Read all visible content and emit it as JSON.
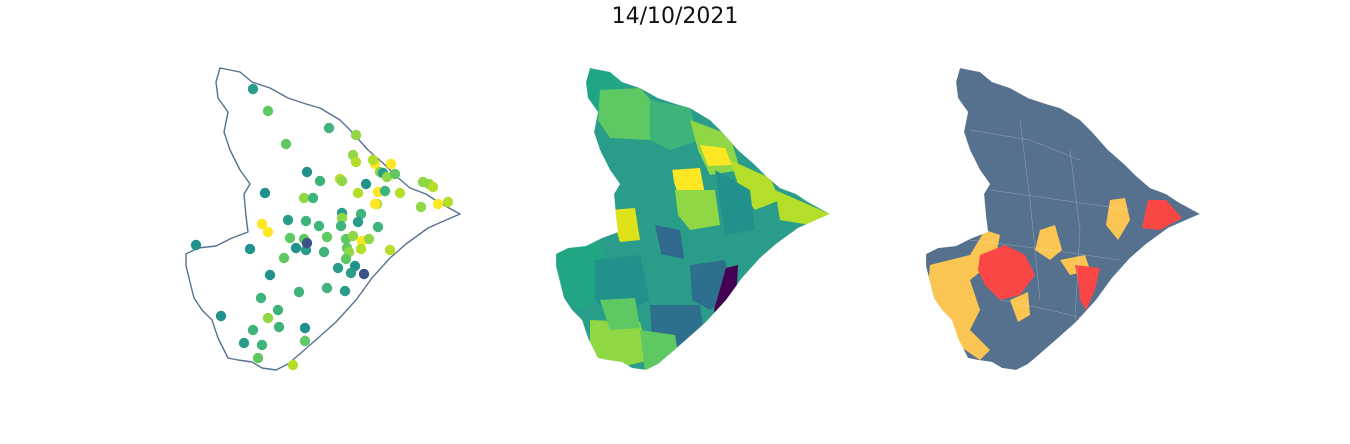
{
  "title": "14/10/2021",
  "colors": {
    "background": "#ffffff",
    "outline": "#56718d",
    "viridis": [
      "#440154",
      "#3b528b",
      "#21918c",
      "#2a9d8a",
      "#3fb47a",
      "#5ec962",
      "#8fd744",
      "#b5de2b",
      "#fde725"
    ],
    "base_region": "#56718d",
    "warning": "#fbc553",
    "alert": "#fb4646"
  },
  "panels": [
    {
      "name": "station-points",
      "kind": "point-map"
    },
    {
      "name": "municipality-choropleth",
      "kind": "choropleth"
    },
    {
      "name": "alert-classification",
      "kind": "categorical"
    }
  ]
}
